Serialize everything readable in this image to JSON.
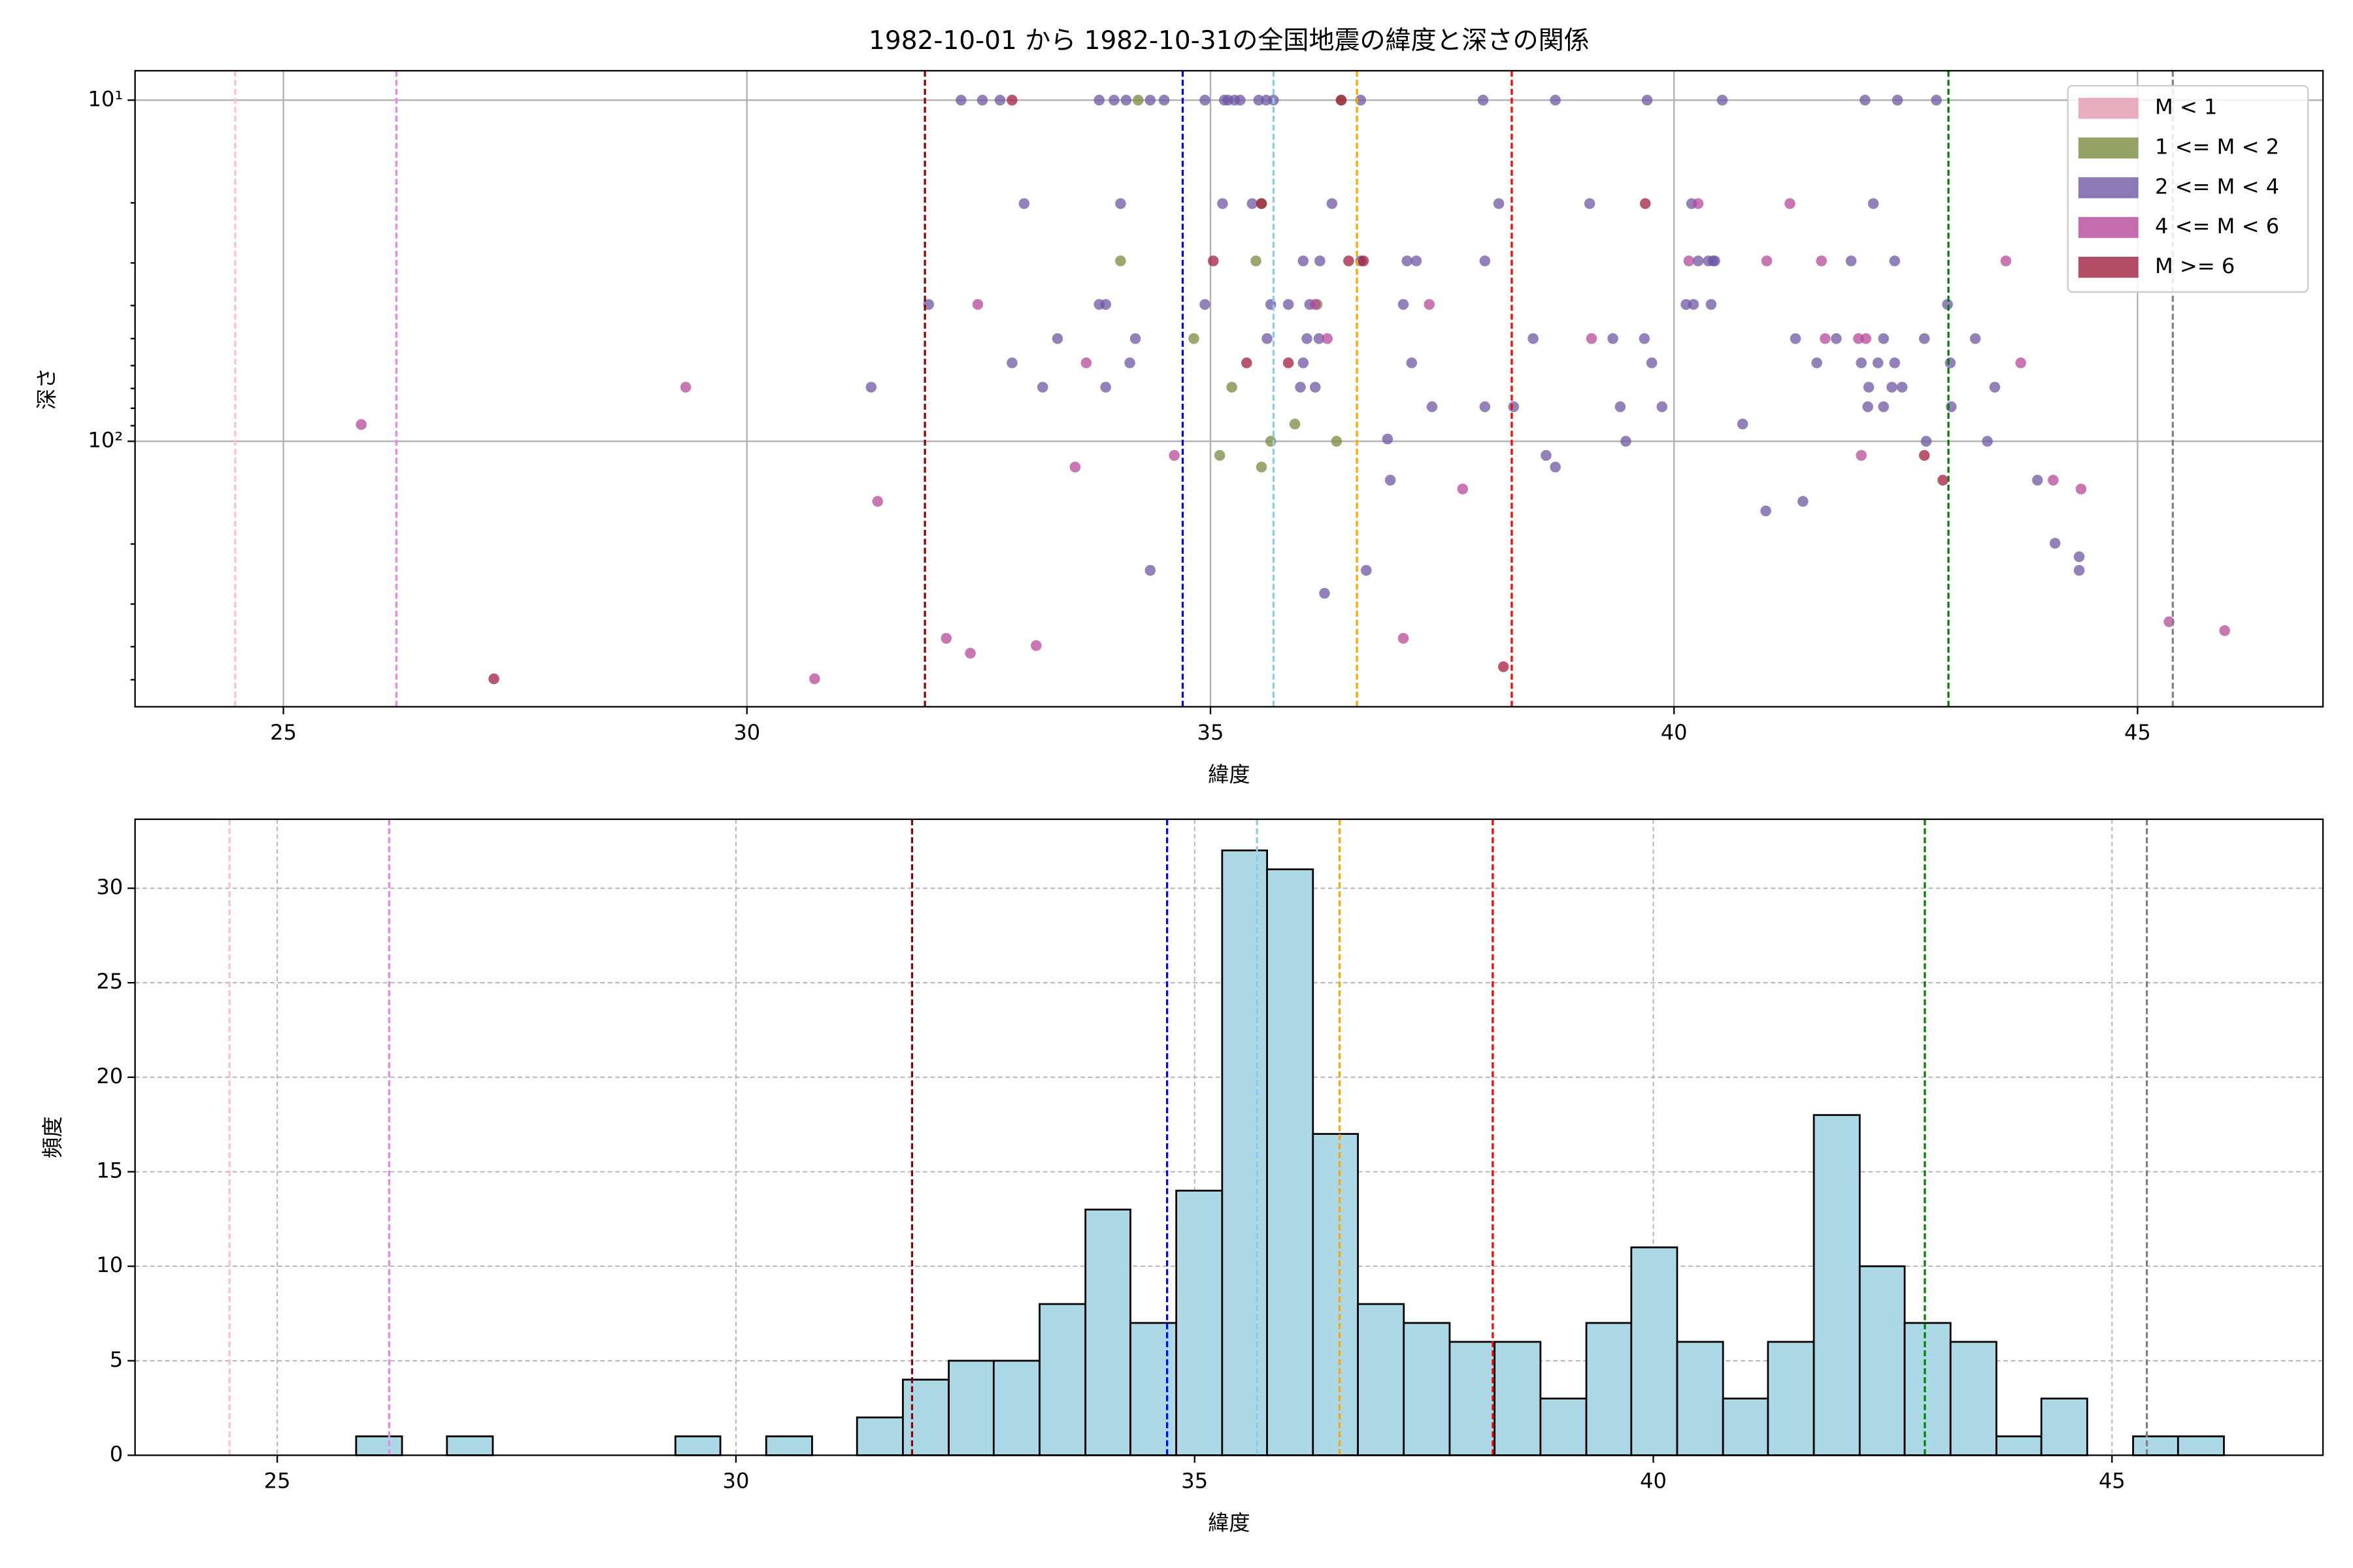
{
  "chart_data": [
    {
      "type": "scatter",
      "title": "1982-10-01 から 1982-10-31の全国地震の緯度と深さの関係",
      "x_label": "緯度",
      "y_label": "深さ",
      "xlim": [
        23.4,
        47.0
      ],
      "xticks": [
        25,
        30,
        35,
        40,
        45
      ],
      "ylim": [
        600,
        8.2
      ],
      "log_y": true,
      "yticks": [
        {
          "value": 10,
          "label": "10¹"
        },
        {
          "value": 100,
          "label": "10²"
        }
      ],
      "yminorticks": [
        20,
        30,
        40,
        50,
        60,
        70,
        80,
        90,
        200,
        300,
        400,
        500
      ],
      "grid": true,
      "grid_linestyle": "solid",
      "legend": "upper right",
      "vlines": [
        {
          "x": 24.48,
          "color": "pink"
        },
        {
          "x": 26.22,
          "color": "violet"
        },
        {
          "x": 31.92,
          "color": "darkred"
        },
        {
          "x": 34.7,
          "color": "blue"
        },
        {
          "x": 35.68,
          "color": "skyblue"
        },
        {
          "x": 36.58,
          "color": "orange"
        },
        {
          "x": 38.25,
          "color": "red"
        },
        {
          "x": 42.96,
          "color": "green"
        },
        {
          "x": 45.38,
          "color": "gray"
        }
      ],
      "series": [
        {
          "name": "M < 1",
          "color": "#e399b0",
          "x": [],
          "values": []
        },
        {
          "name": "1 <= M < 2",
          "color": "#7a8a3f",
          "x": [
            34.22,
            34.03,
            34.82,
            35.1,
            35.23,
            35.55,
            35.65,
            35.91,
            36.15,
            36.36,
            35.55,
            35.49,
            36.41
          ],
          "values": [
            10,
            29.6,
            50,
            110,
            69.4,
            119,
            100,
            89,
            39.7,
            100,
            20.1,
            29.6,
            10
          ]
        },
        {
          "name": "2 <= M < 4",
          "color": "#6f57a3",
          "x": [
            32.31,
            32.54,
            32.73,
            33.8,
            33.96,
            34.09,
            34.35,
            34.5,
            34.94,
            35.15,
            35.19,
            35.26,
            35.32,
            35.52,
            35.6,
            35.68,
            36.62,
            37.94,
            38.72,
            39.71,
            40.52,
            42.06,
            42.41,
            42.83,
            32.99,
            34.03,
            35.13,
            35.45,
            36.31,
            38.11,
            39.09,
            40.19,
            42.15,
            36.0,
            36.18,
            36.62,
            37.12,
            37.22,
            37.96,
            40.26,
            40.37,
            40.42,
            40.44,
            41.91,
            42.38,
            31.96,
            33.8,
            33.87,
            34.94,
            35.65,
            35.84,
            36.07,
            37.08,
            40.13,
            40.21,
            40.4,
            42.95,
            33.35,
            34.19,
            35.61,
            36.04,
            36.17,
            38.48,
            39.34,
            39.68,
            41.31,
            41.75,
            42.26,
            42.7,
            43.25,
            32.86,
            34.13,
            36.0,
            37.17,
            39.76,
            41.54,
            42.02,
            42.2,
            42.38,
            42.98,
            31.34,
            33.19,
            33.87,
            35.97,
            36.13,
            42.1,
            42.35,
            42.46,
            43.46,
            37.39,
            37.96,
            38.27,
            39.42,
            39.87,
            42.09,
            42.26,
            42.99,
            40.74,
            39.48,
            42.72,
            43.38,
            38.62,
            38.72,
            36.94,
            43.92,
            40.99,
            41.39,
            44.11,
            44.37,
            44.37,
            34.35,
            36.68,
            36.23,
            36.91
          ],
          "values": [
            10,
            10,
            10,
            10,
            10,
            10,
            10,
            10,
            10,
            10,
            10,
            10,
            10,
            10,
            10,
            10,
            10,
            10,
            10,
            10,
            10,
            10,
            10,
            10,
            20.1,
            20.1,
            20.1,
            20.1,
            20.1,
            20.1,
            20.1,
            20.1,
            20.1,
            29.6,
            29.6,
            29.6,
            29.6,
            29.6,
            29.6,
            29.6,
            29.6,
            29.6,
            29.6,
            29.6,
            29.6,
            39.7,
            39.7,
            39.7,
            39.7,
            39.7,
            39.7,
            39.7,
            39.7,
            39.7,
            39.7,
            39.7,
            39.7,
            50,
            50,
            50,
            50,
            50,
            50,
            50,
            50,
            50,
            50,
            50,
            50,
            50,
            58.9,
            58.9,
            58.9,
            58.9,
            58.9,
            58.9,
            58.9,
            58.9,
            58.9,
            58.9,
            69.4,
            69.4,
            69.4,
            69.4,
            69.4,
            69.4,
            69.4,
            69.4,
            69.4,
            79.2,
            79.2,
            79.2,
            79.2,
            79.2,
            79.2,
            79.2,
            79.2,
            89,
            100,
            100,
            100,
            110,
            119,
            130,
            130,
            160,
            150,
            199,
            218,
            239,
            239,
            239,
            279,
            98.5
          ]
        },
        {
          "name": "4 <= M < 6",
          "color": "#b5499a",
          "x": [
            25.84,
            29.34,
            30.73,
            31.41,
            32.15,
            32.41,
            32.49,
            33.12,
            33.54,
            33.66,
            34.61,
            36.13,
            36.26,
            37.08,
            37.36,
            37.72,
            39.11,
            40.16,
            40.26,
            41.0,
            41.25,
            41.59,
            41.63,
            41.99,
            42.02,
            42.07,
            43.58,
            43.74,
            44.09,
            44.39,
            45.34,
            45.94
          ],
          "values": [
            89.3,
            69.4,
            497,
            150,
            378,
            418,
            39.7,
            397,
            119,
            58.9,
            110,
            39.7,
            50,
            378,
            39.7,
            138,
            50,
            29.6,
            20.1,
            29.6,
            20.1,
            29.6,
            50,
            50,
            110,
            50,
            29.6,
            58.9,
            130,
            138,
            338,
            359
          ]
        },
        {
          "name": "M >= 6",
          "color": "#a01f3f",
          "x": [
            27.27,
            32.86,
            35.03,
            35.39,
            35.84,
            36.49,
            36.65,
            39.69,
            38.16,
            42.7,
            42.9,
            36.41,
            35.55
          ],
          "values": [
            497,
            10,
            29.6,
            58.9,
            58.9,
            29.6,
            29.6,
            20.1,
            458,
            110,
            130,
            10,
            20.1
          ]
        }
      ]
    },
    {
      "type": "histogram",
      "x_label": "緯度",
      "y_label": "頻度",
      "xlim": [
        23.45,
        47.3
      ],
      "xticks": [
        25,
        30,
        35,
        40,
        45
      ],
      "ylim": [
        0,
        33.65
      ],
      "yticks": [
        0,
        5,
        10,
        15,
        20,
        25,
        30
      ],
      "grid": true,
      "grid_linestyle": "dashed",
      "color": "#add8e6",
      "edgecolor": "#000000",
      "vlines": [
        {
          "x": 24.48,
          "color": "pink"
        },
        {
          "x": 26.22,
          "color": "violet"
        },
        {
          "x": 31.92,
          "color": "darkred"
        },
        {
          "x": 34.7,
          "color": "blue"
        },
        {
          "x": 35.68,
          "color": "skyblue"
        },
        {
          "x": 36.58,
          "color": "orange"
        },
        {
          "x": 38.25,
          "color": "red"
        },
        {
          "x": 42.96,
          "color": "green"
        },
        {
          "x": 45.38,
          "color": "gray"
        }
      ],
      "bins": [
        25.86,
        26.36,
        26.85,
        27.35,
        27.85,
        28.34,
        28.84,
        29.34,
        29.83,
        30.33,
        30.83,
        31.32,
        31.82,
        32.32,
        32.81,
        33.31,
        33.81,
        34.3,
        34.8,
        35.3,
        35.79,
        36.29,
        36.78,
        37.28,
        37.78,
        38.27,
        38.77,
        39.27,
        39.76,
        40.26,
        40.76,
        41.25,
        41.75,
        42.25,
        42.74,
        43.24,
        43.74,
        44.23,
        44.73,
        45.23,
        45.72,
        46.22
      ],
      "values": [
        1,
        0,
        1,
        0,
        0,
        0,
        0,
        1,
        0,
        1,
        0,
        2,
        4,
        5,
        5,
        8,
        13,
        7,
        14,
        32,
        31,
        17,
        8,
        7,
        6,
        6,
        3,
        7,
        11,
        6,
        3,
        6,
        18,
        10,
        7,
        6,
        1,
        3,
        0,
        1,
        1
      ]
    }
  ]
}
